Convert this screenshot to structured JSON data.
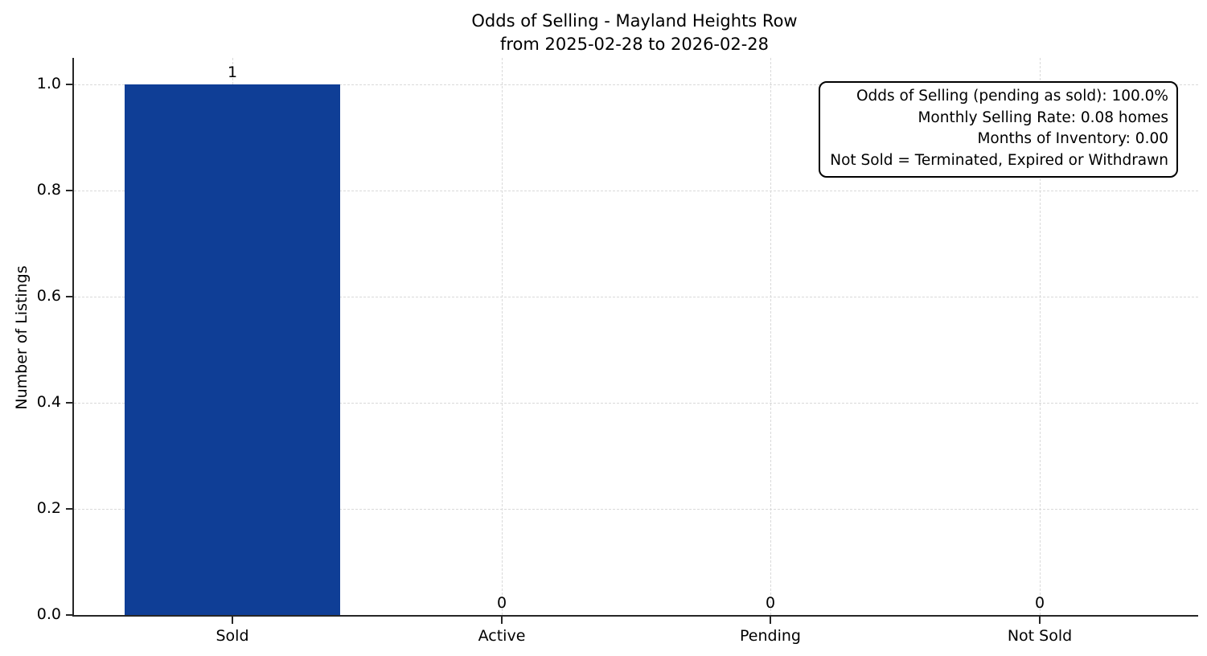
{
  "figure": {
    "title_line1": "Odds of Selling - Mayland Heights Row",
    "title_line2": "from 2025-02-28 to 2026-02-28"
  },
  "chart_data": {
    "type": "bar",
    "title": "Odds of Selling - Mayland Heights Row",
    "subtitle": "from 2025-02-28 to 2026-02-28",
    "categories": [
      "Sold",
      "Active",
      "Pending",
      "Not Sold"
    ],
    "values": [
      1,
      0,
      0,
      0
    ],
    "bar_value_labels": [
      "1",
      "0",
      "0",
      "0"
    ],
    "xlabel": "",
    "ylabel": "Number of Listings",
    "ylim": [
      0,
      1.05
    ],
    "yticks": [
      "0.0",
      "0.2",
      "0.4",
      "0.6",
      "0.8",
      "1.0"
    ],
    "ytick_values": [
      0,
      0.2,
      0.4,
      0.6,
      0.8,
      1.0
    ],
    "grid": "dashed, horizontal and vertical, light gray",
    "legend_position": "none",
    "bar_color": "#0f3e96",
    "spine_color": "#262626",
    "grid_color": "#d9d9d9",
    "annotation_box": {
      "position": "top-right",
      "text_align": "right",
      "lines": [
        "Odds of Selling (pending as sold): 100.0%",
        "Monthly Selling Rate: 0.08 homes",
        "Months of Inventory: 0.00",
        "Not Sold = Terminated, Expired or Withdrawn"
      ]
    }
  }
}
